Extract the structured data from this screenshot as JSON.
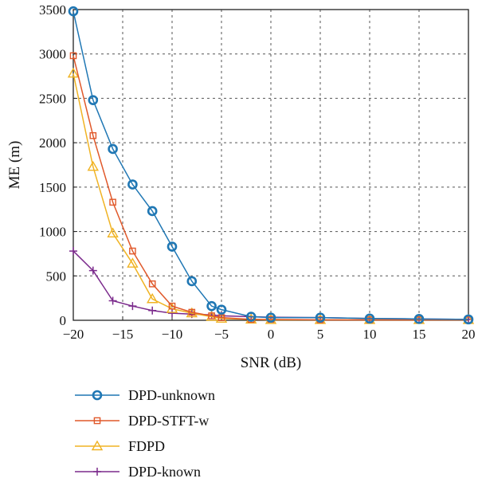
{
  "chart_data": {
    "type": "line",
    "title": "",
    "xlabel": "SNR (dB)",
    "ylabel": "ME (m)",
    "xlim": [
      -20,
      20
    ],
    "ylim": [
      0,
      3500
    ],
    "xticks": [
      -20,
      -15,
      -10,
      -5,
      0,
      5,
      10,
      15,
      20
    ],
    "xtick_labels": [
      "−20",
      "−15",
      "−10",
      "−5",
      "0",
      "5",
      "10",
      "15",
      "20"
    ],
    "yticks": [
      0,
      500,
      1000,
      1500,
      2000,
      2500,
      3000,
      3500
    ],
    "ytick_labels": [
      "0",
      "500",
      "1000",
      "1500",
      "2000",
      "2500",
      "3000",
      "3500"
    ],
    "grid": true,
    "legend_position": "bottom-left, below plot",
    "series": [
      {
        "name": "DPD-unknown",
        "color": "#1f77b4",
        "marker": "circle",
        "x": [
          -20,
          -18,
          -16,
          -14,
          -12,
          -10,
          -8,
          -6,
          -5,
          -2,
          0,
          5,
          10,
          15,
          20
        ],
        "y": [
          3480,
          2480,
          1930,
          1530,
          1230,
          830,
          440,
          160,
          120,
          40,
          30,
          30,
          20,
          15,
          10
        ]
      },
      {
        "name": "DPD-STFT-w",
        "color": "#e0582a",
        "marker": "square",
        "x": [
          -20,
          -18,
          -16,
          -14,
          -12,
          -10,
          -8,
          -6,
          -5,
          -2,
          0,
          5,
          10,
          15,
          20
        ],
        "y": [
          2980,
          2080,
          1330,
          780,
          410,
          160,
          90,
          50,
          30,
          10,
          10,
          5,
          5,
          5,
          5
        ]
      },
      {
        "name": "FDPD",
        "color": "#f0b323",
        "marker": "triangle",
        "x": [
          -20,
          -18,
          -16,
          -14,
          -12,
          -10,
          -8,
          -6,
          -5,
          -2,
          0,
          5,
          10,
          15,
          20
        ],
        "y": [
          2780,
          1730,
          980,
          640,
          240,
          130,
          80,
          40,
          20,
          10,
          5,
          5,
          5,
          5,
          5
        ]
      },
      {
        "name": "DPD-known",
        "color": "#7b2a8c",
        "marker": "plus",
        "x": [
          -20,
          -18,
          -16,
          -14,
          -12,
          -10,
          -8,
          -6,
          -5,
          -2,
          0,
          5,
          10,
          15,
          20
        ],
        "y": [
          780,
          560,
          220,
          160,
          110,
          80,
          70,
          60,
          50,
          40,
          35,
          30,
          20,
          15,
          10
        ]
      }
    ]
  }
}
